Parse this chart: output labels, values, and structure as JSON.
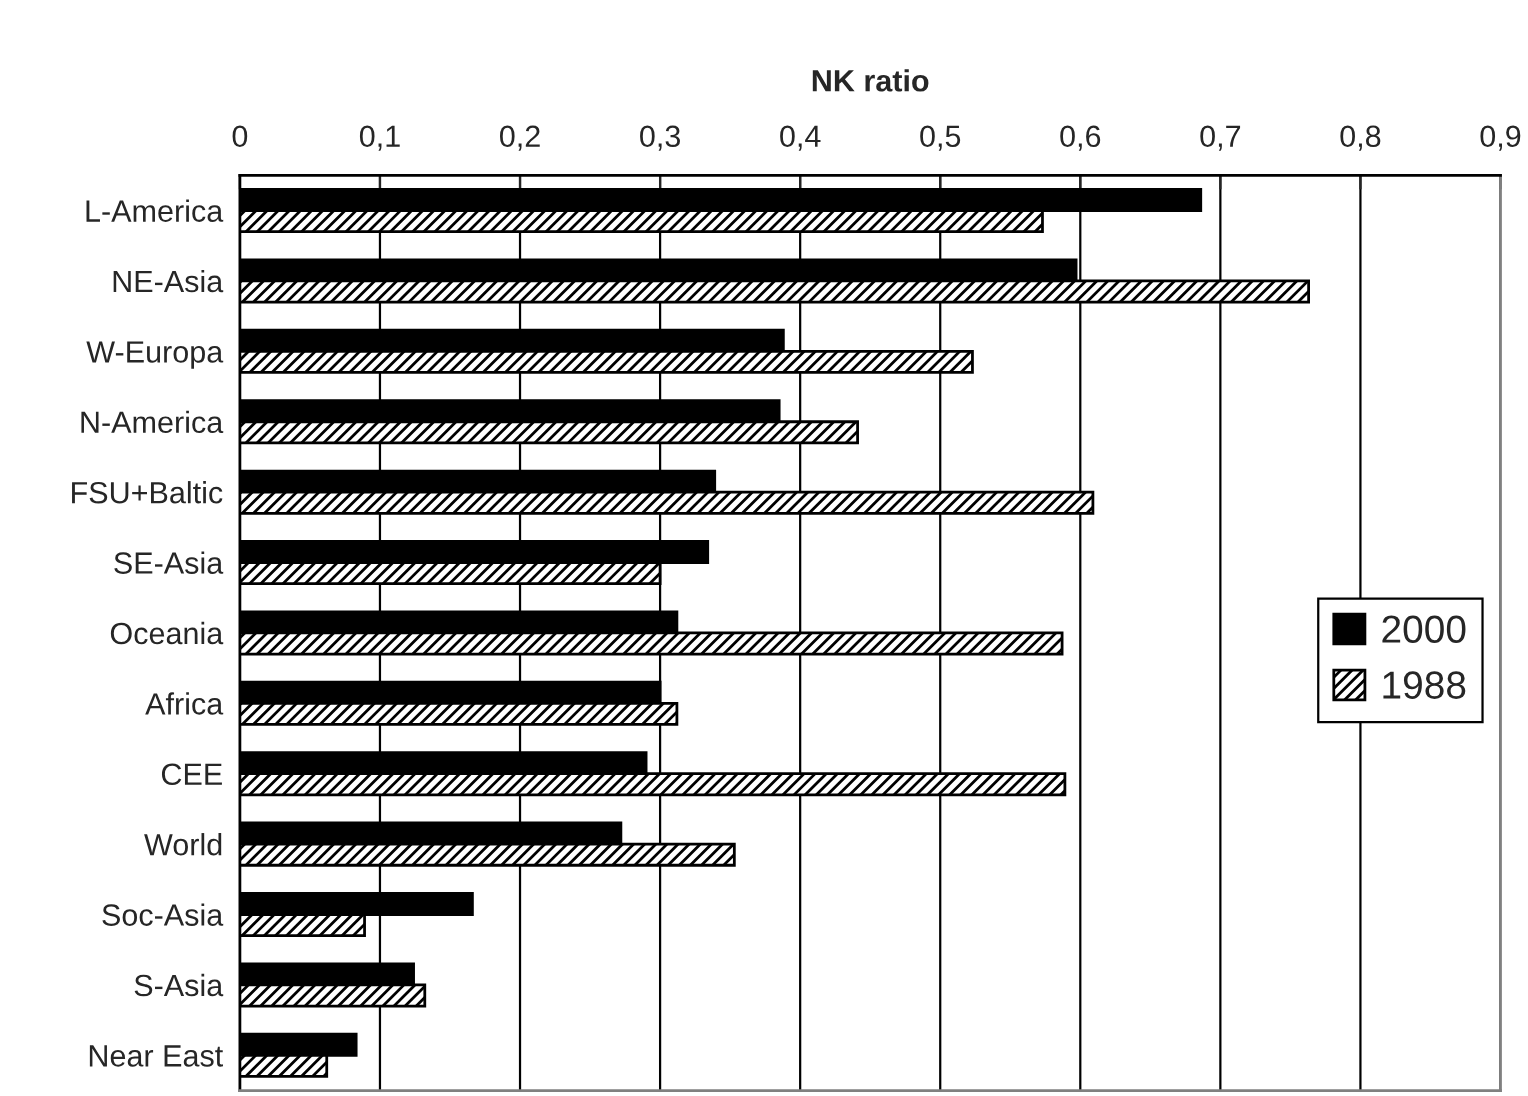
{
  "chart_data": {
    "type": "bar",
    "orientation": "horizontal",
    "xlabel": "NK ratio",
    "categories": [
      "L-America",
      "NE-Asia",
      "W-Europa",
      "N-America",
      "FSU+Baltic",
      "SE-Asia",
      "Oceania",
      "Africa",
      "CEE",
      "World",
      "Soc-Asia",
      "S-Asia",
      "Near East"
    ],
    "series": [
      {
        "name": "2000",
        "color": "#000000",
        "values": [
          0.686,
          0.597,
          0.388,
          0.385,
          0.339,
          0.334,
          0.312,
          0.3,
          0.29,
          0.272,
          0.166,
          0.124,
          0.083
        ]
      },
      {
        "name": "1988",
        "color": "#000000",
        "values": [
          0.573,
          0.763,
          0.523,
          0.441,
          0.609,
          0.3,
          0.587,
          0.312,
          0.589,
          0.353,
          0.089,
          0.132,
          0.062
        ]
      }
    ],
    "xlim": [
      0,
      0.9
    ],
    "xticks": [
      0,
      {
        "value": 0.1,
        "label": "0,1"
      },
      {
        "value": 0.2,
        "label": "0,2"
      },
      {
        "value": 0.3,
        "label": "0,3"
      },
      {
        "value": 0.4,
        "label": "0,4"
      },
      {
        "value": 0.5,
        "label": "0,5"
      },
      {
        "value": 0.6,
        "label": "0,6"
      },
      {
        "value": 0.7,
        "label": "0,7"
      },
      {
        "value": 0.8,
        "label": "0,8"
      },
      {
        "value": 0.9,
        "label": "0,9"
      }
    ],
    "grid": "x",
    "legend": "right"
  }
}
